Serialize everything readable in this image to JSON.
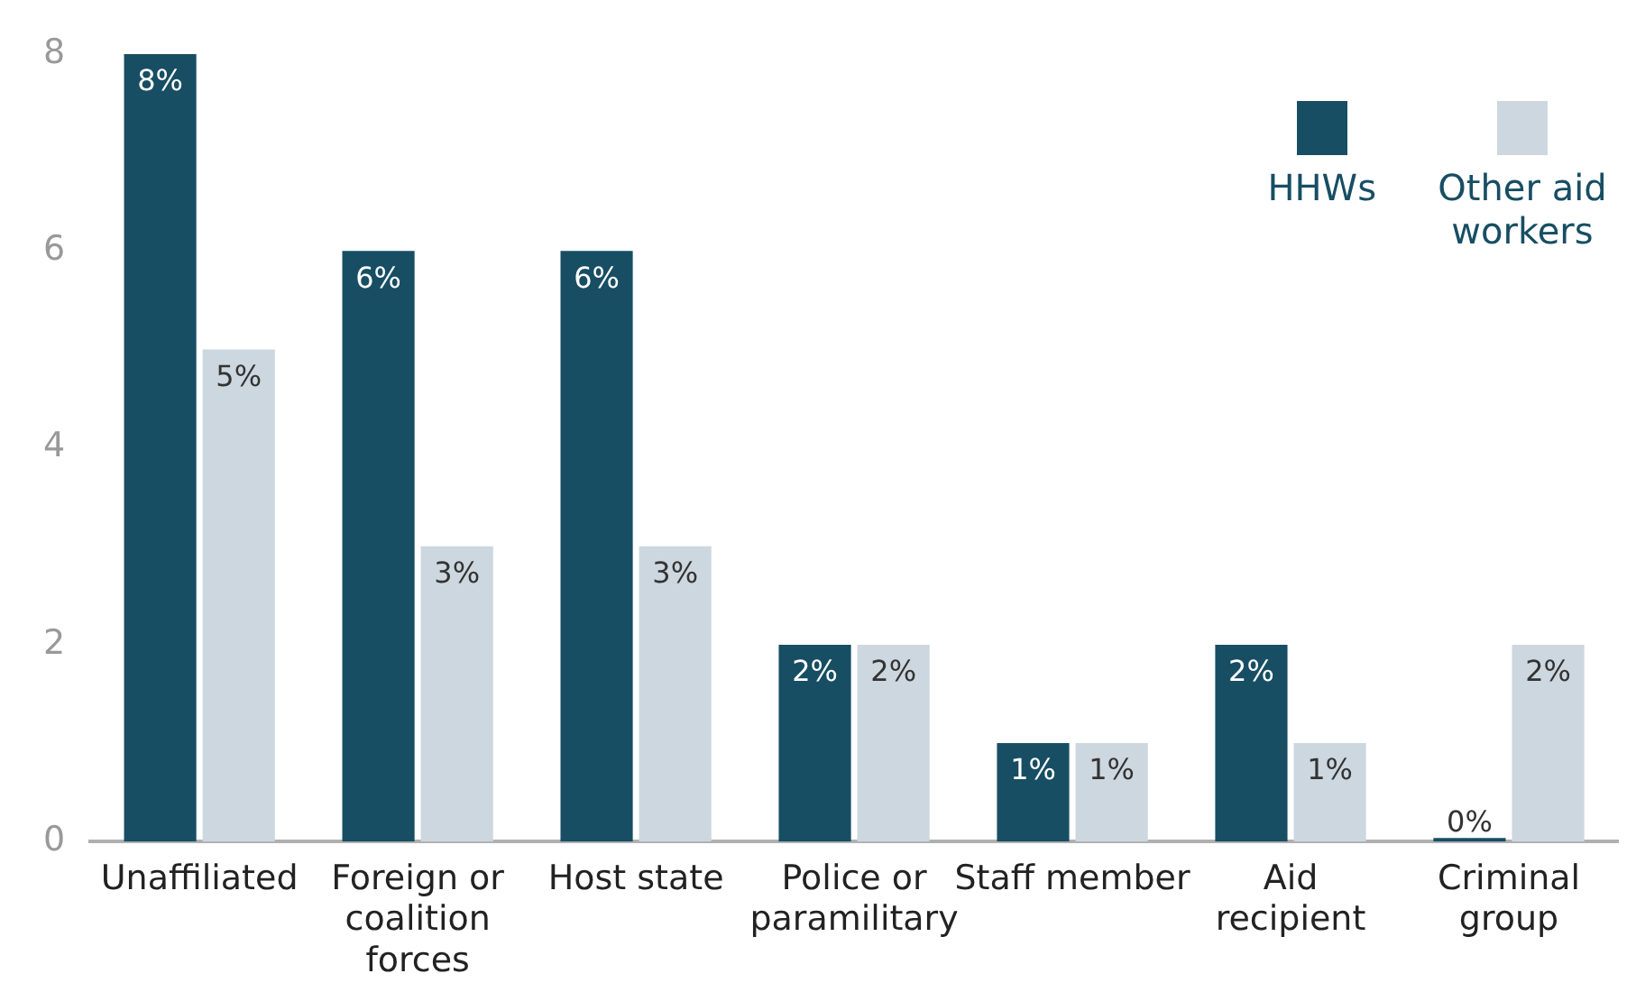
{
  "chart_data": {
    "type": "bar",
    "categories": [
      "Unaffiliated",
      "Foreign or coalition forces",
      "Host state",
      "Police or paramilitary",
      "Staff member",
      "Aid recipient",
      "Criminal group"
    ],
    "series": [
      {
        "name": "HHWs",
        "color": "#174e63",
        "values": [
          8,
          6,
          6,
          2,
          1,
          2,
          0
        ],
        "value_labels": [
          "8%",
          "6%",
          "6%",
          "2%",
          "1%",
          "2%",
          "0%"
        ]
      },
      {
        "name": "Other aid workers",
        "color": "#cdd7df",
        "values": [
          5,
          3,
          3,
          2,
          1,
          1,
          2
        ],
        "value_labels": [
          "5%",
          "3%",
          "3%",
          "2%",
          "1%",
          "1%",
          "2%"
        ]
      }
    ],
    "ylim": [
      0,
      8
    ],
    "yticks": [
      0,
      2,
      4,
      6,
      8
    ],
    "grid": false,
    "legend": "top right"
  }
}
